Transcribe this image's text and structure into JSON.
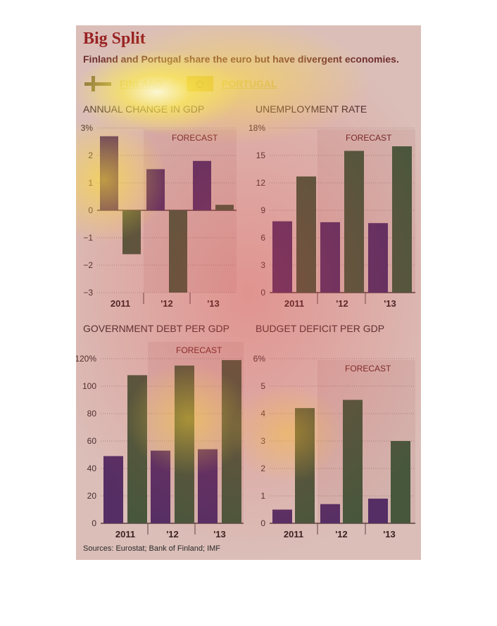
{
  "title": "Big Split",
  "subtitle": "Finland and Portugal share the euro but have divergent economies.",
  "legend": [
    {
      "label": "FINLAND",
      "icon": "finland-flag-icon"
    },
    {
      "label": "PORTUGAL",
      "icon": "portugal-flag-icon"
    }
  ],
  "sources": "Sources: Eurostat; Bank of Finland; IMF",
  "colors": {
    "finland": "#3a2a6a",
    "portugal": "#2a5a3a",
    "forecast_bg": "#c9b9b5",
    "panel": "#d8d3cc"
  },
  "chart_data": [
    {
      "type": "bar",
      "title": "ANNUAL CHANGE IN GDP",
      "categories": [
        "2011",
        "'12",
        "'13"
      ],
      "series": [
        {
          "name": "FINLAND",
          "values": [
            2.7,
            1.5,
            1.8
          ]
        },
        {
          "name": "PORTUGAL",
          "values": [
            -1.6,
            -3.0,
            0.2
          ]
        }
      ],
      "ylim": [
        -3,
        3
      ],
      "yticks": [
        "3%",
        "2",
        "1",
        "0",
        "−1",
        "−2",
        "−3"
      ],
      "yticks_values": [
        3,
        2,
        1,
        0,
        -1,
        -2,
        -3
      ],
      "annotation": "FORECAST",
      "forecast_categories": [
        "'12",
        "'13"
      ]
    },
    {
      "type": "bar",
      "title": "UNEMPLOYMENT RATE",
      "categories": [
        "2011",
        "'12",
        "'13"
      ],
      "series": [
        {
          "name": "FINLAND",
          "values": [
            7.8,
            7.7,
            7.6
          ]
        },
        {
          "name": "PORTUGAL",
          "values": [
            12.7,
            15.5,
            16.0
          ]
        }
      ],
      "ylim": [
        0,
        18
      ],
      "yticks": [
        "18%",
        "15",
        "12",
        "9",
        "6",
        "3",
        "0"
      ],
      "yticks_values": [
        18,
        15,
        12,
        9,
        6,
        3,
        0
      ],
      "annotation": "FORECAST",
      "forecast_categories": [
        "'12",
        "'13"
      ]
    },
    {
      "type": "bar",
      "title": "GOVERNMENT DEBT PER GDP",
      "categories": [
        "2011",
        "'12",
        "'13"
      ],
      "series": [
        {
          "name": "FINLAND",
          "values": [
            49,
            53,
            54
          ]
        },
        {
          "name": "PORTUGAL",
          "values": [
            108,
            115,
            119
          ]
        }
      ],
      "ylim": [
        0,
        120
      ],
      "yticks": [
        "120%",
        "100",
        "80",
        "60",
        "40",
        "20",
        "0"
      ],
      "yticks_values": [
        120,
        100,
        80,
        60,
        40,
        20,
        0
      ],
      "annotation": "FORECAST",
      "forecast_categories": [
        "'12",
        "'13"
      ]
    },
    {
      "type": "bar",
      "title": "BUDGET DEFICIT PER GDP",
      "categories": [
        "2011",
        "'12",
        "'13"
      ],
      "series": [
        {
          "name": "FINLAND",
          "values": [
            0.5,
            0.7,
            0.9
          ]
        },
        {
          "name": "PORTUGAL",
          "values": [
            4.2,
            4.5,
            3.0
          ]
        }
      ],
      "ylim": [
        0,
        6
      ],
      "yticks": [
        "6%",
        "5",
        "4",
        "3",
        "2",
        "1",
        "0"
      ],
      "yticks_values": [
        6,
        5,
        4,
        3,
        2,
        1,
        0
      ],
      "annotation": "FORECAST",
      "forecast_categories": [
        "'12",
        "'13"
      ]
    }
  ]
}
